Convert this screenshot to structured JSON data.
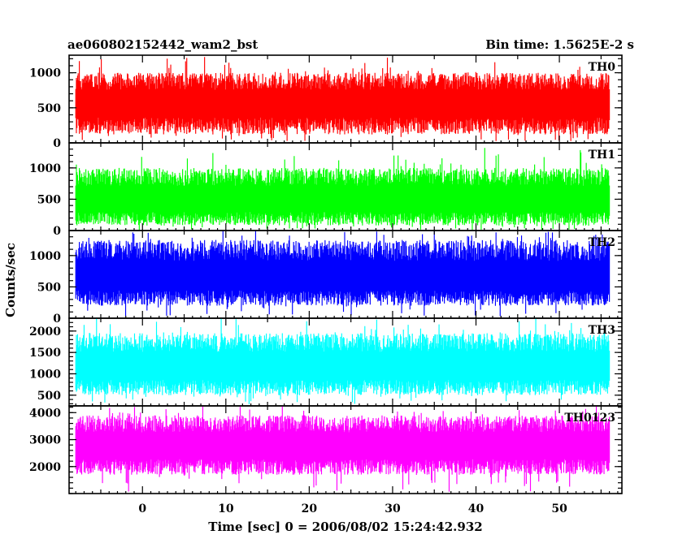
{
  "header": {
    "left": "ae060802152442_wam2_bst",
    "right": "Bin time: 1.5625E-2 s"
  },
  "axes": {
    "ylabel": "Counts/sec",
    "xlabel": "Time [sec] 0 = 2006/08/02 15:24:42.932"
  },
  "chart_data": {
    "type": "line",
    "x_range": [
      -8.8,
      57.5
    ],
    "x_data_range": [
      -8.0,
      56.0
    ],
    "bin_time": 0.015625,
    "x_ticks": [
      0,
      10,
      20,
      30,
      40,
      50
    ],
    "x_tick_labels": [
      "0",
      "10",
      "20",
      "30",
      "40",
      "50"
    ],
    "series": [
      {
        "name": "TH0",
        "color": "#ff0000",
        "ylim": [
          0,
          1250
        ],
        "y_ticks": [
          0,
          500,
          1000
        ],
        "y_tick_labels": [
          "0",
          "500",
          "1000"
        ],
        "mean": 560,
        "low_typical": 120,
        "high_typical": 1000,
        "min": 20,
        "max": 1250
      },
      {
        "name": "TH1",
        "color": "#00ff00",
        "ylim": [
          0,
          1400
        ],
        "y_ticks": [
          0,
          500,
          1000
        ],
        "y_tick_labels": [
          "0",
          "500",
          "1000"
        ],
        "mean": 480,
        "low_typical": 80,
        "high_typical": 1000,
        "min": 0,
        "max": 1320
      },
      {
        "name": "TH2",
        "color": "#0000ff",
        "ylim": [
          0,
          1400
        ],
        "y_ticks": [
          0,
          500,
          1000
        ],
        "y_tick_labels": [
          "0",
          "500",
          "1000"
        ],
        "mean": 640,
        "low_typical": 200,
        "high_typical": 1250,
        "min": 30,
        "max": 1400
      },
      {
        "name": "TH3",
        "color": "#00ffff",
        "ylim": [
          250,
          2300
        ],
        "y_ticks": [
          500,
          1000,
          1500,
          2000
        ],
        "y_tick_labels": [
          "500",
          "1000",
          "1500",
          "2000"
        ],
        "mean": 1150,
        "low_typical": 500,
        "high_typical": 1950,
        "min": 280,
        "max": 2300
      },
      {
        "name": "TH0123",
        "color": "#ff00ff",
        "ylim": [
          1000,
          4250
        ],
        "y_ticks": [
          2000,
          3000,
          4000
        ],
        "y_tick_labels": [
          "2000",
          "3000",
          "4000"
        ],
        "mean": 2750,
        "low_typical": 1700,
        "high_typical": 3900,
        "min": 1050,
        "max": 4250
      }
    ]
  }
}
